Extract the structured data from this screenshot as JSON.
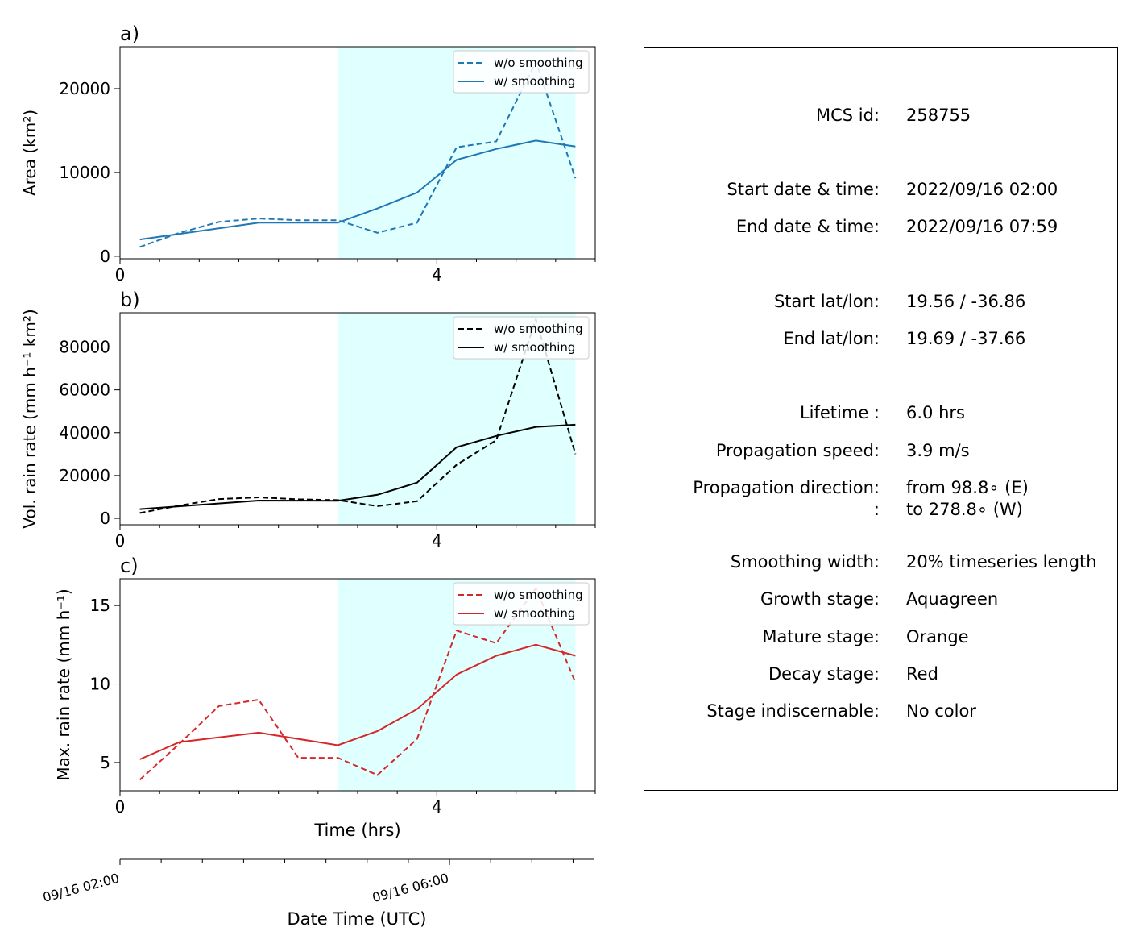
{
  "colors": {
    "blue": "#1f77b4",
    "black": "#000000",
    "red": "#d62728",
    "stage_shade": "#e0ffff"
  },
  "chart_data": [
    {
      "type": "line",
      "panel_label": "a)",
      "ylabel": "Area  (km²)",
      "xlabel": "",
      "x": [
        0.25,
        0.75,
        1.25,
        1.75,
        2.25,
        2.75,
        3.25,
        3.75,
        4.25,
        4.75,
        5.25,
        5.75
      ],
      "series": [
        {
          "name": "w/o smoothing",
          "style": "dashed",
          "color": "#1f77b4",
          "values": [
            1100,
            2800,
            4100,
            4500,
            4300,
            4300,
            2800,
            4000,
            13000,
            13700,
            23200,
            9300
          ]
        },
        {
          "name": "w/ smoothing",
          "style": "solid",
          "color": "#1f77b4",
          "values": [
            2000,
            null,
            null,
            4000,
            null,
            4000,
            5700,
            7600,
            11500,
            12800,
            13800,
            13100
          ]
        }
      ],
      "xlim": [
        0,
        6
      ],
      "ylim": [
        -300,
        25000
      ],
      "xticks": [
        0,
        4
      ],
      "yticks": [
        0,
        10000,
        20000
      ],
      "shade": [
        2.75,
        5.75
      ],
      "legend_position": "upper right"
    },
    {
      "type": "line",
      "panel_label": "b)",
      "ylabel": "Vol. rain rate (mm h⁻¹ km²)",
      "xlabel": "",
      "x": [
        0.25,
        0.75,
        1.25,
        1.75,
        2.25,
        2.75,
        3.25,
        3.75,
        4.25,
        4.75,
        5.25,
        5.75
      ],
      "series": [
        {
          "name": "w/o smoothing",
          "style": "dashed",
          "color": "#000000",
          "values": [
            2500,
            6000,
            9000,
            9800,
            8900,
            8500,
            5700,
            8000,
            25000,
            36500,
            93000,
            30000
          ]
        },
        {
          "name": "w/ smoothing",
          "style": "solid",
          "color": "#000000",
          "values": [
            4300,
            null,
            null,
            8300,
            null,
            8200,
            11000,
            16700,
            33200,
            38500,
            42700,
            43700
          ]
        }
      ],
      "xlim": [
        0,
        6
      ],
      "ylim": [
        -3000,
        96000
      ],
      "xticks": [
        0,
        4
      ],
      "yticks": [
        0,
        20000,
        40000,
        60000,
        80000
      ],
      "shade": [
        2.75,
        5.75
      ],
      "legend_position": "upper right"
    },
    {
      "type": "line",
      "panel_label": "c)",
      "ylabel": "Max. rain rate  (mm h⁻¹)",
      "xlabel": "Time (hrs)",
      "x": [
        0.25,
        0.75,
        1.25,
        1.75,
        2.25,
        2.75,
        3.25,
        3.75,
        4.25,
        4.75,
        5.25,
        5.75
      ],
      "series": [
        {
          "name": "w/o smoothing",
          "style": "dashed",
          "color": "#d62728",
          "values": [
            3.9,
            6.2,
            8.6,
            9.0,
            5.3,
            5.3,
            4.2,
            6.5,
            13.4,
            12.6,
            16.1,
            10.1
          ]
        },
        {
          "name": "w/ smoothing",
          "style": "solid",
          "color": "#d62728",
          "values": [
            5.2,
            6.3,
            null,
            6.9,
            null,
            6.1,
            7.0,
            8.4,
            10.6,
            11.8,
            12.5,
            11.8
          ]
        }
      ],
      "xlim": [
        0,
        6
      ],
      "ylim": [
        3.2,
        16.7
      ],
      "xticks": [
        0,
        4
      ],
      "yticks": [
        5,
        10,
        15
      ],
      "shade": [
        2.75,
        5.75
      ],
      "legend_position": "upper right"
    }
  ],
  "secondary_axis": {
    "label": "Date Time (UTC)",
    "tick_labels": [
      "09/16 02:00",
      "09/16 06:00"
    ]
  },
  "info": [
    {
      "key": "MCS id:",
      "value": "258755"
    },
    {
      "key": "Start date & time:",
      "value": "2022/09/16 02:00"
    },
    {
      "key": "End date & time:",
      "value": "2022/09/16 07:59"
    },
    {
      "key": "Start lat/lon:",
      "value": "19.56 / -36.86"
    },
    {
      "key": "End lat/lon:",
      "value": "19.69 / -37.66"
    },
    {
      "key": "Lifetime :",
      "value": "6.0 hrs"
    },
    {
      "key": "Propagation speed:",
      "value": "3.9 m/s"
    },
    {
      "key": "Propagation direction:",
      "value": "from  98.8∘ (E)"
    },
    {
      "key": ":",
      "value": "to   278.8∘ (W)"
    },
    {
      "key": "Smoothing width:",
      "value": "20% timeseries length"
    },
    {
      "key": "Growth stage:",
      "value": "Aquagreen"
    },
    {
      "key": "Mature stage:",
      "value": "Orange"
    },
    {
      "key": "Decay stage:",
      "value": "Red"
    },
    {
      "key": "Stage indiscernable:",
      "value": "No color"
    }
  ]
}
